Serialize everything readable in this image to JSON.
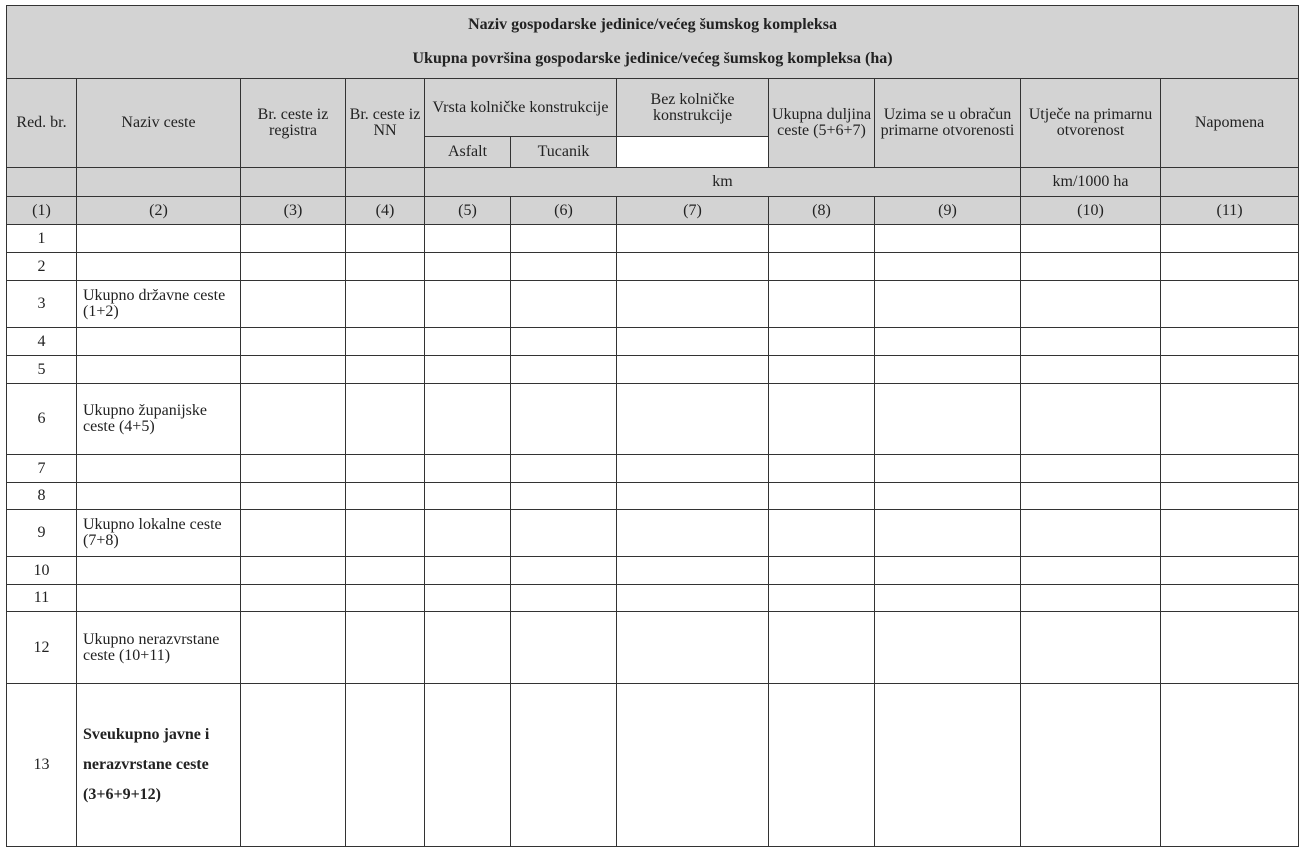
{
  "title_line1": "Naziv gospodarske jedinice/većeg šumskog kompleksa",
  "title_line2": "Ukupna površina gospodarske jedinice/većeg šumskog kompleksa (ha)",
  "headers": {
    "red_br": "Red. br.",
    "naziv_ceste": "Naziv ceste",
    "br_registra": "Br. ceste iz registra",
    "br_nn": "Br. ceste iz NN",
    "vrsta": "Vrsta kolničke konstrukcije",
    "asfalt": "Asfalt",
    "tucanik": "Tucanik",
    "bez": "Bez kolničke konstrukcije",
    "ukupna": "Ukupna duljina ceste (5+6+7)",
    "uzima": "Uzima se u obračun primarne otvorenosti",
    "utjece": "Utječe na primarnu otvorenost",
    "napomena": "Napomena"
  },
  "units": {
    "km": "km",
    "km_ha": "km/1000 ha"
  },
  "column_numbers": [
    "(1)",
    "(2)",
    "(3)",
    "(4)",
    "(5)",
    "(6)",
    "(7)",
    "(8)",
    "(9)",
    "(10)",
    "(11)"
  ],
  "rows": [
    {
      "no": "1",
      "name": ""
    },
    {
      "no": "2",
      "name": ""
    },
    {
      "no": "3",
      "name": "Ukupno državne ceste (1+2)"
    },
    {
      "no": "4",
      "name": ""
    },
    {
      "no": "5",
      "name": ""
    },
    {
      "no": "6",
      "name": "Ukupno županijske ceste (4+5)"
    },
    {
      "no": "7",
      "name": ""
    },
    {
      "no": "8",
      "name": ""
    },
    {
      "no": "9",
      "name": "Ukupno lokalne ceste (7+8)"
    },
    {
      "no": "10",
      "name": ""
    },
    {
      "no": "11",
      "name": ""
    },
    {
      "no": "12",
      "name": "Ukupno nerazvrstane ceste (10+11)"
    },
    {
      "no": "13",
      "name": "Sveukupno javne i nerazvrstane ceste (3+6+9+12)"
    }
  ]
}
